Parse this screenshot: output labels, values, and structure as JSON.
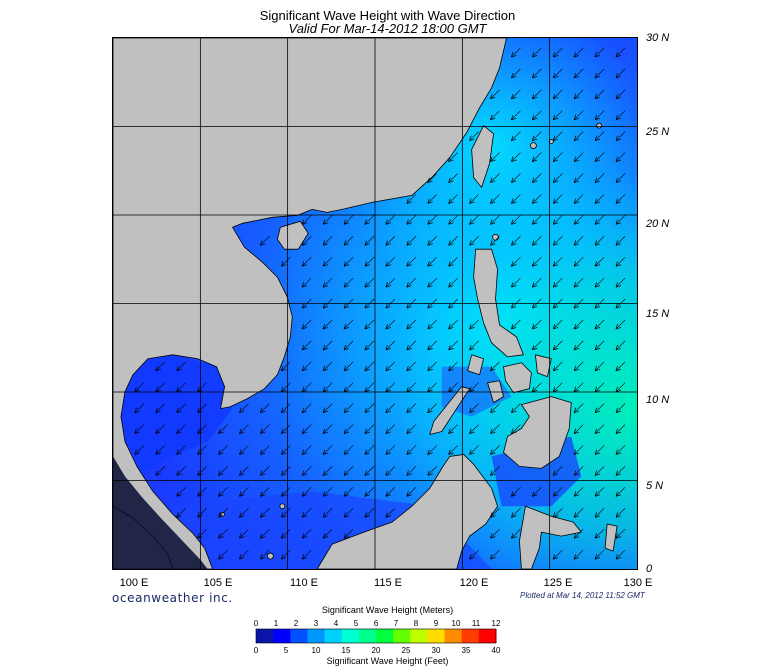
{
  "title": "Significant Wave Height with Wave Direction",
  "subtitle": "Valid For Mar-14-2012 18:00 GMT",
  "map": {
    "region": "South China Sea",
    "lon_range": [
      100,
      130
    ],
    "lat_range": [
      0,
      30
    ],
    "lat_labels": [
      "30 N",
      "25 N",
      "20 N",
      "15 N",
      "10 N",
      "5 N",
      "0"
    ],
    "lon_labels": [
      "100 E",
      "105 E",
      "110 E",
      "115 E",
      "120 E",
      "125 E",
      "130 E"
    ],
    "gridlines": true,
    "land_color": "#c0c0c0",
    "wave_direction": "toward southwest",
    "wave_direction_angle_deg": 225
  },
  "branding": {
    "logo_text": "oceanweather inc.",
    "plotted_text": "Plotted at Mar 14, 2012 11:52 GMT"
  },
  "colorbar": {
    "title_meters": "Significant Wave Height (Meters)",
    "title_feet": "Significant Wave Height (Feet)",
    "meter_ticks": [
      "0",
      "1",
      "2",
      "3",
      "4",
      "5",
      "6",
      "7",
      "8",
      "9",
      "10",
      "11",
      "12"
    ],
    "feet_ticks": [
      "0",
      "5",
      "10",
      "15",
      "20",
      "25",
      "30",
      "35",
      "40"
    ],
    "colors": [
      "#0a14a8",
      "#0000ff",
      "#0050ff",
      "#0096ff",
      "#00d2ff",
      "#00ffd2",
      "#00ff8c",
      "#00ff3c",
      "#64ff00",
      "#beff00",
      "#ffdc00",
      "#ff8c00",
      "#ff3c00",
      "#ff0000"
    ]
  }
}
